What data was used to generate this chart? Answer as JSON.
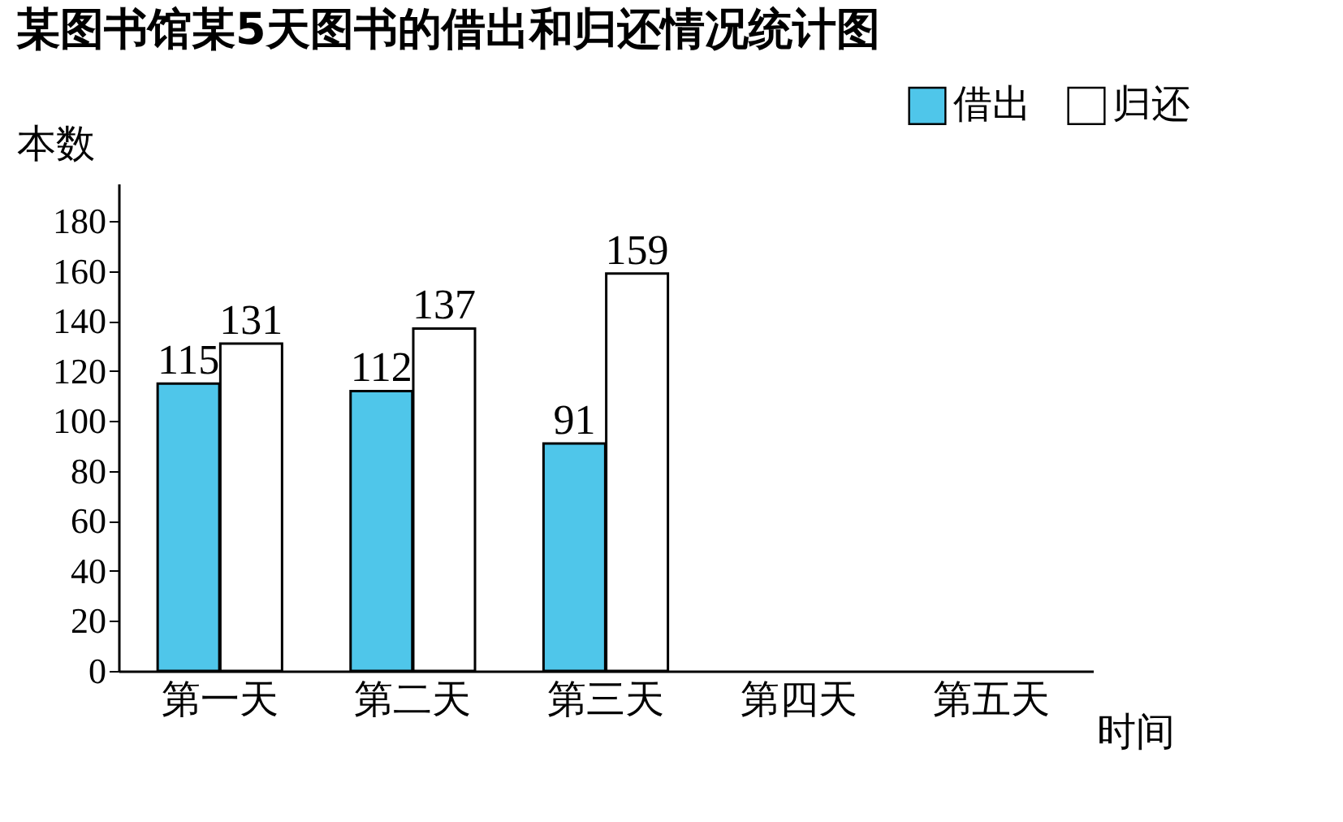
{
  "chart_data": {
    "type": "bar",
    "title": "某图书馆某5天图书的借出和归还情况统计图",
    "xlabel": "时间",
    "ylabel": "本数",
    "categories": [
      "第一天",
      "第二天",
      "第三天",
      "第四天",
      "第五天"
    ],
    "series": [
      {
        "name": "借出",
        "color": "#4fc6ea",
        "values": [
          115,
          112,
          91,
          null,
          null
        ]
      },
      {
        "name": "归还",
        "color": "#ffffff",
        "values": [
          131,
          137,
          159,
          null,
          null
        ]
      }
    ],
    "ylim": [
      0,
      195
    ],
    "yticks": [
      0,
      20,
      40,
      60,
      80,
      100,
      120,
      140,
      160,
      180
    ],
    "grid": false,
    "legend": "top right",
    "data_labels": true
  }
}
